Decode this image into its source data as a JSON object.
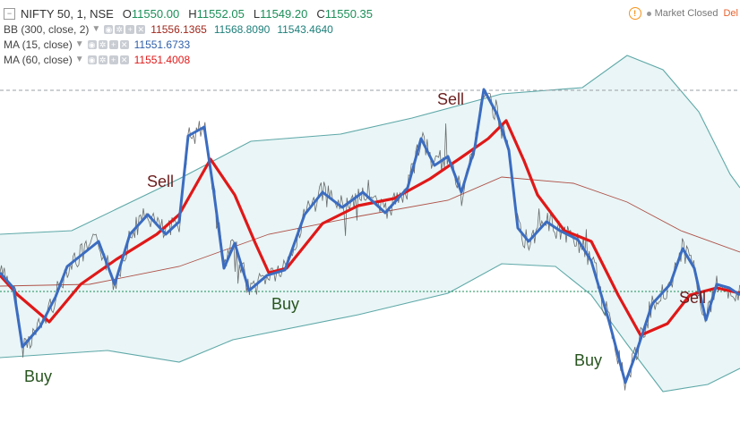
{
  "legend": {
    "symbol": "NIFTY 50, 1, NSE",
    "ohlc": [
      {
        "label": "O",
        "value": "11550.00"
      },
      {
        "label": "H",
        "value": "11552.05"
      },
      {
        "label": "L",
        "value": "11549.20"
      },
      {
        "label": "C",
        "value": "11550.35"
      }
    ],
    "indicators": [
      {
        "name": "BB (300, close, 2)",
        "values": [
          "11556.1365",
          "11568.8090",
          "11543.4640"
        ],
        "colors": [
          "#a0271c",
          "#1d7f7a",
          "#1d7f7a"
        ]
      },
      {
        "name": "MA (15, close)",
        "values": [
          "11551.6733"
        ],
        "colors": [
          "#2f5faa"
        ]
      },
      {
        "name": "MA (60, close)",
        "values": [
          "11551.4008"
        ],
        "colors": [
          "#e01818"
        ]
      }
    ]
  },
  "status": {
    "market": "Market Closed",
    "delay": "Del"
  },
  "signals": [
    {
      "type": "sell",
      "text": "Sell"
    },
    {
      "type": "sell",
      "text": "Sell"
    },
    {
      "type": "sell",
      "text": "Sell"
    },
    {
      "type": "buy",
      "text": "Buy"
    },
    {
      "type": "buy",
      "text": "Buy"
    },
    {
      "type": "buy",
      "text": "Buy"
    }
  ],
  "colors": {
    "band_fill": "#e9f5f6",
    "band_line": "#5fa8a8",
    "bb_basis": "#a0271c",
    "ma15": "#3b6cc0",
    "ma60": "#e01818",
    "price": "#555555",
    "crosshair": "#9aa0a6",
    "green_ref": "#1b8f58"
  }
}
